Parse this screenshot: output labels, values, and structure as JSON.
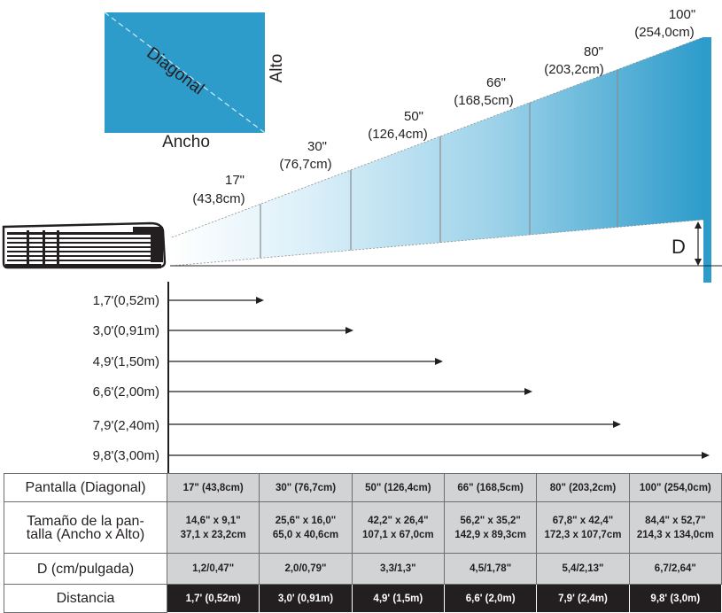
{
  "labels": {
    "diagonal": "Diagonal",
    "height": "Alto",
    "width": "Ancho",
    "d": "D"
  },
  "screens": [
    {
      "size": "17\"",
      "metric": "(43,8cm)"
    },
    {
      "size": "30\"",
      "metric": "(76,7cm)"
    },
    {
      "size": "50\"",
      "metric": "(126,4cm)"
    },
    {
      "size": "66\"",
      "metric": "(168,5cm)"
    },
    {
      "size": "80\"",
      "metric": "(203,2cm)"
    },
    {
      "size": "100\"",
      "metric": "(254,0cm)"
    }
  ],
  "distances": [
    "1,7'(0,52m)",
    "3,0'(0,91m)",
    "4,9'(1,50m)",
    "6,6'(2,00m)",
    "7,9'(2,40m)",
    "9,8'(3,00m)"
  ],
  "table": {
    "diagonal": {
      "header": "Pantalla (Diagonal)",
      "values": [
        "17\" (43,8cm)",
        "30\" (76,7cm)",
        "50\" (126,4cm)",
        "66\" (168,5cm)",
        "80\" (203,2cm)",
        "100\" (254,0cm)"
      ]
    },
    "size": {
      "header_line1": "Tamaño de la pan-",
      "header_line2": "talla (Ancho x Alto)",
      "inches": [
        "14,6\" x 9,1\"",
        "25,6\" x 16,0\"",
        "42,2\" x 26,4\"",
        "56,2\" x 35,2\"",
        "67,8\" x 42,4\"",
        "84,4\" x 52,7\""
      ],
      "cm": [
        "37,1 x 23,2cm",
        "65,0 x 40,6cm",
        "107,1 x 67,0cm",
        "142,9 x 89,3cm",
        "172,3 x 107,7cm",
        "214,3 x 134,0cm"
      ]
    },
    "d": {
      "header": "D (cm/pulgada)",
      "values": [
        "1,2/0,47\"",
        "2,0/0,79\"",
        "3,3/1,3\"",
        "4,5/1,78\"",
        "5,4/2,13\"",
        "6,7/2,64\""
      ]
    },
    "distance": {
      "header": "Distancia",
      "values": [
        "1,7' (0,52m)",
        "3,0' (0,91m)",
        "4,9' (1,5m)",
        "6,6' (2,0m)",
        "7,9' (2,4m)",
        "9,8' (3,0m)"
      ]
    }
  },
  "colors": {
    "screen_blue": "#2e9ccb",
    "screen_light": "#e9f5fb",
    "dark": "#231f20",
    "table_gray": "#d1d3d4"
  }
}
